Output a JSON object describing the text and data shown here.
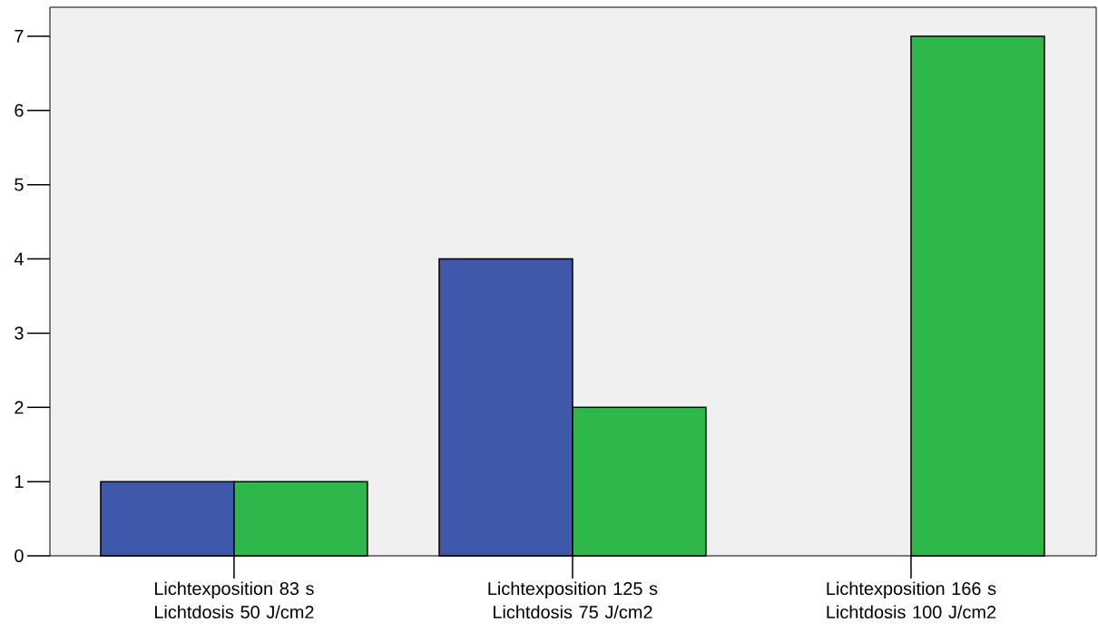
{
  "chart_data": {
    "type": "bar",
    "categories": [
      "Lichtexposition 83 s Lichtdosis 50 J/cm2",
      "Lichtexposition 125 s Lichtdosis 75 J/cm2",
      "Lichtexposition 166 s Lichtdosis 100 J/cm2"
    ],
    "series": [
      {
        "color": "#3f58aa",
        "values": [
          1,
          4,
          null
        ]
      },
      {
        "color": "#2fb84a",
        "values": [
          1,
          2,
          7
        ]
      }
    ],
    "ylim": [
      0,
      7.39
    ],
    "yticks": [
      0,
      1,
      2,
      3,
      4,
      5,
      6,
      7
    ]
  }
}
